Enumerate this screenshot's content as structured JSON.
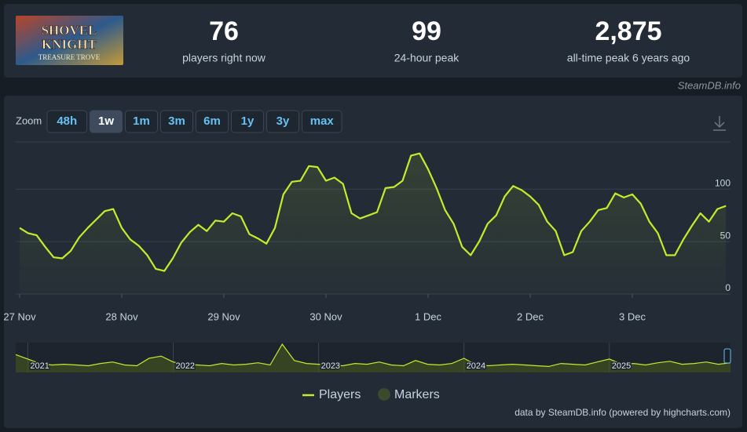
{
  "logo": {
    "lines": [
      "SHOVEL",
      "KNIGHT",
      "TREASURE TROVE"
    ]
  },
  "stats": [
    {
      "value": "76",
      "label": "players right now"
    },
    {
      "value": "99",
      "label": "24-hour peak"
    },
    {
      "value": "2,875",
      "label": "all-time peak 6 years ago"
    }
  ],
  "source": "SteamDB.info",
  "zoom": {
    "label": "Zoom",
    "options": [
      "48h",
      "1w",
      "1m",
      "3m",
      "6m",
      "1y",
      "3y",
      "max"
    ],
    "selected": "1w"
  },
  "chart_data": {
    "type": "area",
    "categories": [
      "27 Nov",
      null,
      null,
      null,
      null,
      null,
      null,
      null,
      null,
      null,
      null,
      null,
      "28 Nov",
      null,
      null,
      null,
      null,
      null,
      null,
      null,
      null,
      null,
      null,
      null,
      "29 Nov",
      null,
      null,
      null,
      null,
      null,
      null,
      null,
      null,
      null,
      null,
      null,
      "30 Nov",
      null,
      null,
      null,
      null,
      null,
      null,
      null,
      null,
      null,
      null,
      null,
      "1 Dec",
      null,
      null,
      null,
      null,
      null,
      null,
      null,
      null,
      null,
      null,
      null,
      "2 Dec",
      null,
      null,
      null,
      null,
      null,
      null,
      null,
      null,
      null,
      null,
      null,
      "3 Dec",
      null,
      null,
      null,
      null,
      null,
      null,
      null,
      null,
      null,
      null,
      null
    ],
    "series": [
      {
        "name": "Players",
        "color": "#c4ec2c",
        "values": [
          63,
          58,
          56,
          45,
          35,
          34,
          41,
          54,
          63,
          71,
          79,
          81,
          63,
          52,
          46,
          37,
          24,
          22,
          34,
          49,
          59,
          66,
          60,
          70,
          69,
          77,
          74,
          57,
          53,
          48,
          63,
          95,
          107,
          108,
          122,
          121,
          108,
          111,
          105,
          77,
          72,
          75,
          78,
          101,
          102,
          108,
          132,
          134,
          119,
          101,
          80,
          67,
          45,
          37,
          50,
          67,
          75,
          93,
          103,
          99,
          93,
          85,
          69,
          60,
          37,
          40,
          60,
          69,
          80,
          82,
          96,
          92,
          95,
          86,
          69,
          58,
          37,
          37,
          52,
          65,
          77,
          69,
          81,
          84
        ]
      }
    ],
    "markers": {
      "name": "Markers",
      "color": "#3b4a2c"
    },
    "ylim": [
      0,
      145
    ],
    "yticks": [
      0,
      50,
      100
    ],
    "grid": true,
    "credit": "data by SteamDB.info (powered by highcharts.com)",
    "navigator": {
      "categories": [
        null,
        "2021",
        null,
        null,
        null,
        null,
        null,
        null,
        null,
        null,
        null,
        null,
        null,
        "2022",
        null,
        null,
        null,
        null,
        null,
        null,
        null,
        null,
        null,
        null,
        null,
        "2023",
        null,
        null,
        null,
        null,
        null,
        null,
        null,
        null,
        null,
        null,
        null,
        "2024",
        null,
        null,
        null,
        null,
        null,
        null,
        null,
        null,
        null,
        null,
        null,
        "2025",
        null,
        null,
        null,
        null,
        null,
        null,
        null,
        null,
        null,
        null
      ],
      "values": [
        120,
        90,
        60,
        50,
        55,
        50,
        45,
        60,
        70,
        50,
        45,
        95,
        110,
        70,
        55,
        50,
        45,
        60,
        50,
        55,
        65,
        50,
        190,
        80,
        60,
        55,
        50,
        45,
        60,
        55,
        70,
        50,
        45,
        80,
        55,
        50,
        60,
        95,
        50,
        45,
        50,
        55,
        50,
        45,
        40,
        60,
        55,
        50,
        70,
        90,
        55,
        60,
        50,
        65,
        75,
        55,
        60,
        70,
        55,
        65
      ]
    }
  }
}
